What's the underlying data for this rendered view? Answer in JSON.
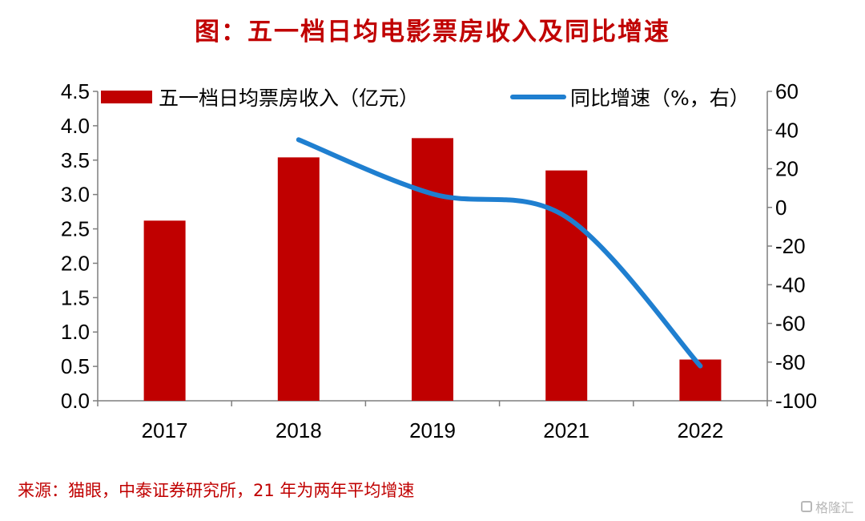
{
  "title": "图：五一档日均电影票房收入及同比增速",
  "source": "来源：猫眼，中泰证券研究所，21 年为两年平均增速",
  "watermark": "格隆汇",
  "chart_data": {
    "type": "bar",
    "categories": [
      "2017",
      "2018",
      "2019",
      "2021",
      "2022"
    ],
    "series": [
      {
        "name": "五一档日均票房收入（亿元）",
        "type": "bar",
        "axis": "left",
        "color": "#c00000",
        "values": [
          2.62,
          3.54,
          3.82,
          3.35,
          0.6
        ]
      },
      {
        "name": "同比增速（%，右）",
        "type": "line",
        "axis": "right",
        "color": "#1f7fd0",
        "values": [
          null,
          35,
          7,
          -5,
          -82
        ]
      }
    ],
    "yleft": {
      "min": 0,
      "max": 4.5,
      "ticks": [
        "0.0",
        "0.5",
        "1.0",
        "1.5",
        "2.0",
        "2.5",
        "3.0",
        "3.5",
        "4.0",
        "4.5"
      ]
    },
    "yright": {
      "min": -100,
      "max": 60,
      "ticks": [
        "-100",
        "-80",
        "-60",
        "-40",
        "-20",
        "0",
        "20",
        "40",
        "60"
      ]
    },
    "legend_position": "top",
    "grid": false
  }
}
